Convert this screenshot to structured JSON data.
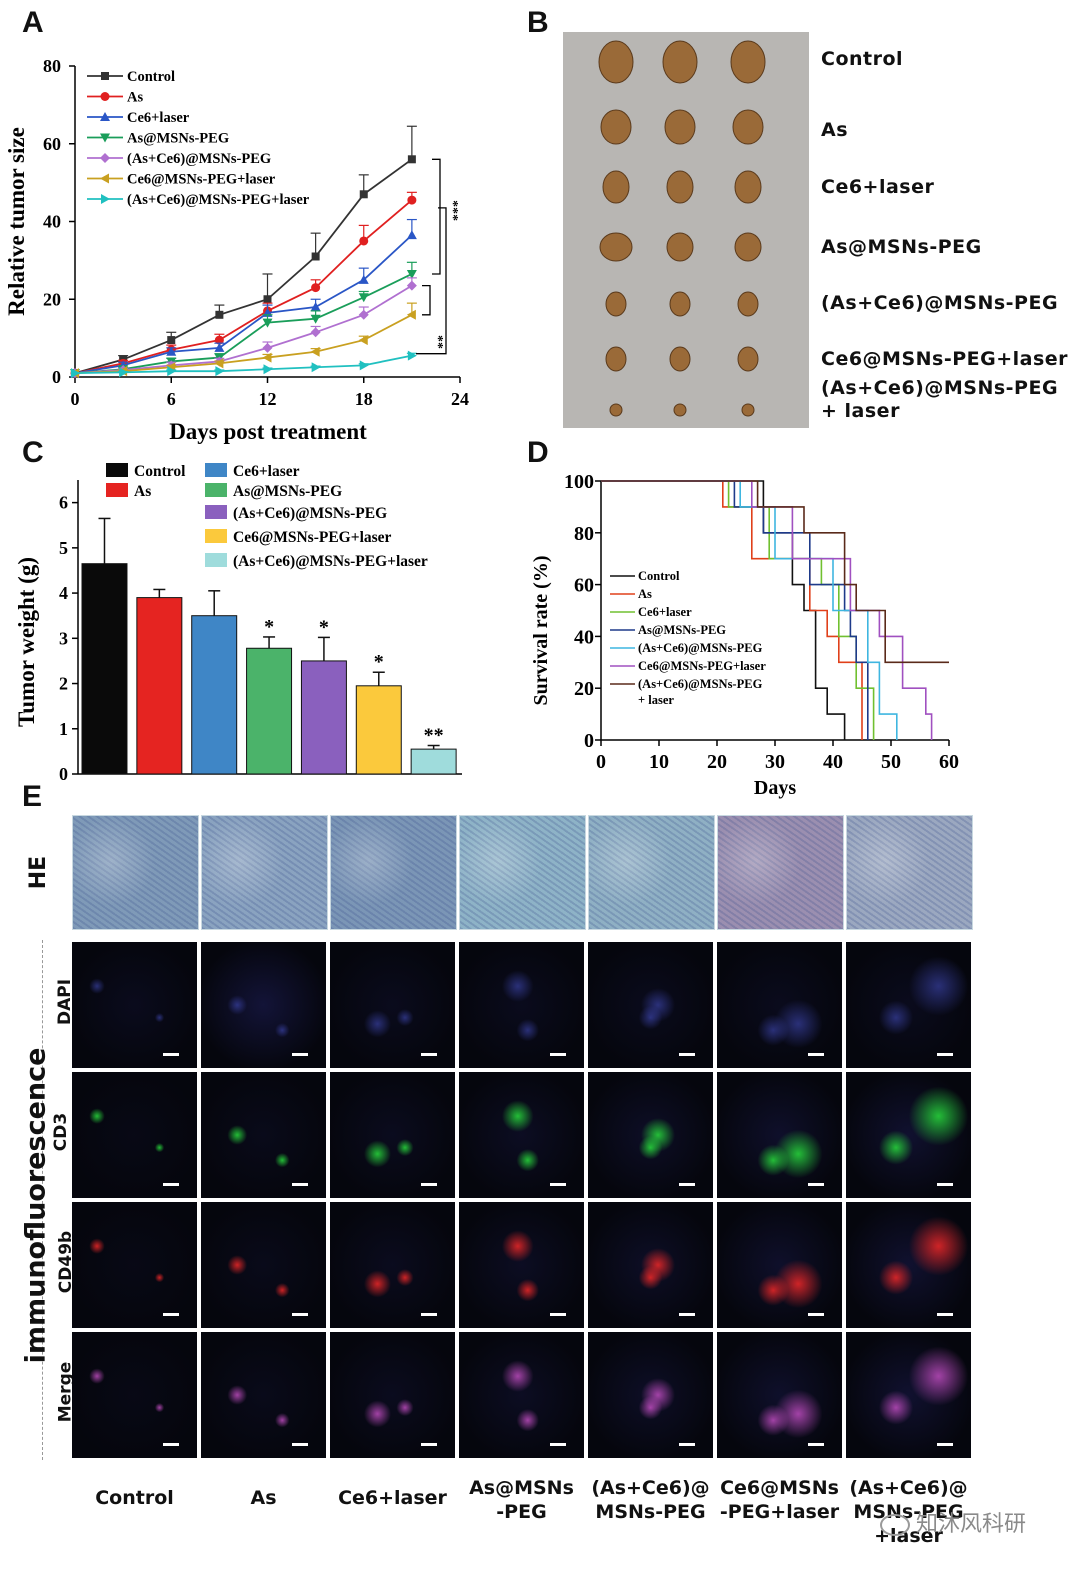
{
  "panels": {
    "a_letter": "A",
    "b_letter": "B",
    "c_letter": "C",
    "d_letter": "D",
    "e_letter": "E"
  },
  "chart_data": [
    {
      "id": "A",
      "type": "line",
      "title": "",
      "xlabel": "Days post treatment",
      "ylabel": "Relative tumor size",
      "xlim": [
        0,
        24
      ],
      "ylim": [
        0,
        80
      ],
      "xticks": [
        "0",
        "6",
        "12",
        "18",
        "24"
      ],
      "yticks": [
        "0",
        "20",
        "40",
        "60",
        "80"
      ],
      "x": [
        0,
        3,
        6,
        9,
        12,
        15,
        18,
        21
      ],
      "series": [
        {
          "name": "Control",
          "color": "#333333",
          "marker": "square",
          "values": [
            1,
            4.5,
            9.5,
            16,
            20,
            31,
            47,
            56
          ],
          "errors": [
            0,
            1,
            2,
            2.5,
            6.5,
            6,
            5,
            8.5
          ]
        },
        {
          "name": "As",
          "color": "#e02020",
          "marker": "circle",
          "values": [
            1,
            3.5,
            7,
            9.5,
            17,
            23,
            35,
            45.5
          ],
          "errors": [
            0,
            0.8,
            1.2,
            1.5,
            2,
            2,
            4,
            2
          ]
        },
        {
          "name": "Ce6+laser",
          "color": "#2a56c6",
          "marker": "triangle-up",
          "values": [
            1,
            3,
            6.5,
            7.5,
            16.5,
            18,
            25,
            36.5
          ],
          "errors": [
            0,
            0.8,
            1,
            1.2,
            2,
            2,
            3,
            4
          ]
        },
        {
          "name": "As@MSNs-PEG",
          "color": "#1a9e5a",
          "marker": "triangle-down",
          "values": [
            1,
            2,
            4,
            5,
            14,
            15,
            20.5,
            26.5
          ],
          "errors": [
            0,
            0.5,
            0.8,
            1,
            2,
            2,
            1.5,
            3
          ]
        },
        {
          "name": "(As+Ce6)@MSNs-PEG",
          "color": "#b070d0",
          "marker": "diamond",
          "values": [
            1,
            1.8,
            3,
            4,
            7.5,
            11.5,
            16,
            23.5
          ],
          "errors": [
            0,
            0.5,
            0.8,
            0.8,
            1.5,
            1.5,
            2,
            2
          ]
        },
        {
          "name": "Ce6@MSNs-PEG+laser",
          "color": "#c9a020",
          "marker": "triangle-left",
          "values": [
            1,
            1.5,
            2.5,
            3.5,
            5,
            6.5,
            9.5,
            16
          ],
          "errors": [
            0,
            0.4,
            0.5,
            0.6,
            0.8,
            0.8,
            1,
            3
          ]
        },
        {
          "name": "(As+Ce6)@MSNs-PEG+laser",
          "color": "#20c0c0",
          "marker": "triangle-right",
          "values": [
            1,
            1.2,
            1.5,
            1.5,
            2,
            2.5,
            3,
            5.5
          ],
          "errors": [
            0,
            0.2,
            0.3,
            0.3,
            0.3,
            0.3,
            0.4,
            0.6
          ]
        }
      ],
      "annotations": [
        "***",
        "**"
      ]
    },
    {
      "id": "C",
      "type": "bar",
      "title": "",
      "xlabel": "",
      "ylabel": "Tumor weight (g)",
      "ylim": [
        0,
        6.5
      ],
      "yticks": [
        "0",
        "1",
        "2",
        "3",
        "4",
        "5",
        "6"
      ],
      "categories": [
        "Control",
        "As",
        "Ce6+laser",
        "As@MSNs-PEG",
        "(As+Ce6)@MSNs-PEG",
        "Ce6@MSNs-PEG+laser",
        "(As+Ce6)@MSNs-PEG+laser"
      ],
      "values": [
        4.65,
        3.9,
        3.5,
        2.78,
        2.5,
        1.95,
        0.55
      ],
      "errors": [
        1.0,
        0.18,
        0.55,
        0.25,
        0.52,
        0.3,
        0.08
      ],
      "colors": [
        "#0a0a0a",
        "#e52421",
        "#3f86c6",
        "#4bb36a",
        "#8a60be",
        "#fbc93c",
        "#9fdcdc"
      ],
      "significance": [
        "",
        "",
        "",
        "*",
        "*",
        "*",
        "**"
      ]
    },
    {
      "id": "D",
      "type": "line",
      "title": "",
      "xlabel": "Days",
      "ylabel": "Survival rate (%)",
      "xlim": [
        0,
        60
      ],
      "ylim": [
        0,
        100
      ],
      "xticks": [
        "0",
        "10",
        "20",
        "30",
        "40",
        "50",
        "60"
      ],
      "yticks": [
        "0",
        "20",
        "40",
        "60",
        "80",
        "100"
      ],
      "series": [
        {
          "name": "Control",
          "color": "#111111",
          "points": [
            [
              0,
              100
            ],
            [
              28,
              100
            ],
            [
              28,
              80
            ],
            [
              33,
              80
            ],
            [
              33,
              60
            ],
            [
              35,
              60
            ],
            [
              35,
              50
            ],
            [
              37,
              50
            ],
            [
              37,
              20
            ],
            [
              39,
              20
            ],
            [
              39,
              10
            ],
            [
              42,
              10
            ],
            [
              42,
              0
            ]
          ]
        },
        {
          "name": "As",
          "color": "#e0401a",
          "points": [
            [
              0,
              100
            ],
            [
              21,
              100
            ],
            [
              21,
              90
            ],
            [
              26,
              90
            ],
            [
              26,
              70
            ],
            [
              36,
              70
            ],
            [
              36,
              50
            ],
            [
              39,
              50
            ],
            [
              39,
              40
            ],
            [
              41,
              40
            ],
            [
              41,
              30
            ],
            [
              45,
              30
            ],
            [
              45,
              0
            ]
          ]
        },
        {
          "name": "Ce6+laser",
          "color": "#70c030",
          "points": [
            [
              0,
              100
            ],
            [
              22,
              100
            ],
            [
              22,
              90
            ],
            [
              29,
              90
            ],
            [
              29,
              70
            ],
            [
              38,
              70
            ],
            [
              38,
              60
            ],
            [
              41,
              60
            ],
            [
              41,
              40
            ],
            [
              44,
              40
            ],
            [
              44,
              20
            ],
            [
              47,
              20
            ],
            [
              47,
              0
            ]
          ]
        },
        {
          "name": "As@MSNs-PEG",
          "color": "#1e3a8a",
          "points": [
            [
              0,
              100
            ],
            [
              23,
              100
            ],
            [
              23,
              90
            ],
            [
              28,
              90
            ],
            [
              28,
              80
            ],
            [
              36,
              80
            ],
            [
              36,
              60
            ],
            [
              42,
              60
            ],
            [
              42,
              50
            ],
            [
              43,
              50
            ],
            [
              43,
              40
            ],
            [
              44,
              40
            ],
            [
              44,
              30
            ],
            [
              46,
              30
            ],
            [
              46,
              0
            ]
          ]
        },
        {
          "name": "(As+Ce6)@MSNs-PEG",
          "color": "#3fb6e0",
          "points": [
            [
              0,
              100
            ],
            [
              24,
              100
            ],
            [
              24,
              90
            ],
            [
              30,
              90
            ],
            [
              30,
              70
            ],
            [
              40,
              70
            ],
            [
              40,
              50
            ],
            [
              46,
              50
            ],
            [
              46,
              30
            ],
            [
              48,
              30
            ],
            [
              48,
              10
            ],
            [
              51,
              10
            ],
            [
              51,
              0
            ]
          ]
        },
        {
          "name": "Ce6@MSNs-PEG+laser",
          "color": "#a050c0",
          "points": [
            [
              0,
              100
            ],
            [
              26,
              100
            ],
            [
              26,
              90
            ],
            [
              33,
              90
            ],
            [
              33,
              70
            ],
            [
              43,
              70
            ],
            [
              43,
              50
            ],
            [
              48,
              50
            ],
            [
              48,
              40
            ],
            [
              52,
              40
            ],
            [
              52,
              20
            ],
            [
              56,
              20
            ],
            [
              56,
              10
            ],
            [
              57,
              10
            ],
            [
              57,
              0
            ]
          ]
        },
        {
          "name": "(As+Ce6)@MSNs-PEG + laser",
          "color": "#5a2a1a",
          "points": [
            [
              0,
              100
            ],
            [
              27,
              100
            ],
            [
              27,
              90
            ],
            [
              35,
              90
            ],
            [
              35,
              80
            ],
            [
              42,
              80
            ],
            [
              42,
              60
            ],
            [
              44,
              60
            ],
            [
              44,
              50
            ],
            [
              49,
              50
            ],
            [
              49,
              30
            ],
            [
              55,
              30
            ],
            [
              55,
              30
            ],
            [
              60,
              30
            ]
          ]
        }
      ]
    }
  ],
  "panel_b": {
    "labels": [
      "Control",
      "As",
      "Ce6+laser",
      "As@MSNs-PEG",
      "(As+Ce6)@MSNs-PEG",
      "Ce6@MSNs-PEG+laser",
      "(As+Ce6)@MSNs-PEG",
      "+ laser"
    ],
    "bg_color": "#b8b6b3",
    "tumor_color": "#9a6a38"
  },
  "panel_e": {
    "he_label": "HE",
    "if_group_label": "immunofluorescence",
    "rows": [
      "DAPI",
      "CD3",
      "CD49b",
      "Merge"
    ],
    "columns": [
      [
        "Control"
      ],
      [
        "As"
      ],
      [
        "Ce6+laser"
      ],
      [
        "As@MSNs",
        "-PEG"
      ],
      [
        "(As+Ce6)@",
        "MSNs-PEG"
      ],
      [
        "Ce6@MSNs",
        "-PEG+laser"
      ],
      [
        "(As+Ce6)@",
        "MSNs-PEG",
        "+laser"
      ]
    ],
    "he_colors": [
      "#7f9ab8",
      "#8aa3c0",
      "#7b96b6",
      "#8eb3c7",
      "#8fb0c4",
      "#9b8fb0",
      "#9ba8c0"
    ]
  },
  "watermark": "知沐风科研"
}
